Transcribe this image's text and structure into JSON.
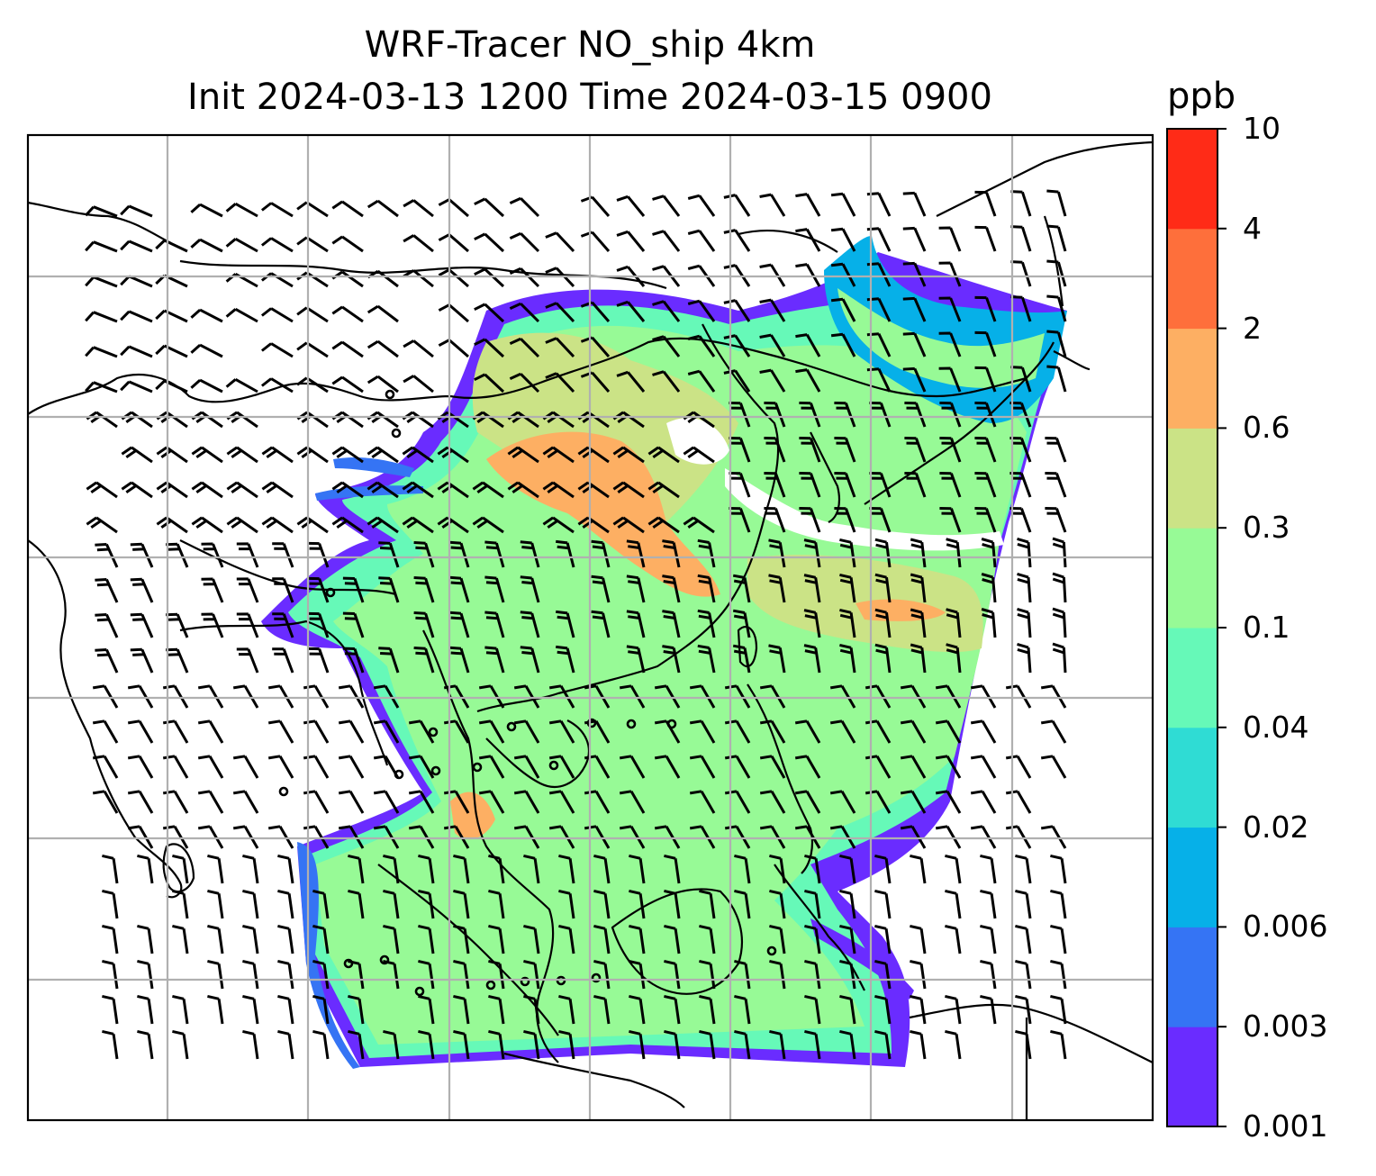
{
  "title": {
    "line1": "WRF-Tracer NO_ship 4km",
    "line2": "Init 2024-03-13 1200 Time 2024-03-15 0900"
  },
  "colorbar": {
    "unit": "ppb",
    "ticks": [
      "0.001",
      "0.003",
      "0.006",
      "0.02",
      "0.04",
      "0.1",
      "0.3",
      "0.6",
      "2",
      "4",
      "10"
    ],
    "colors": [
      "#6a2cff",
      "#3574f4",
      "#06b0e8",
      "#2fdcd4",
      "#66f9b8",
      "#97fa96",
      "#cbe386",
      "#fdaf63",
      "#fe6f3b",
      "#ff2b17"
    ]
  },
  "map": {
    "variable": "NO_ship",
    "gridlines": true,
    "wind_barbs": true,
    "coastlines": true,
    "country_borders": true
  }
}
